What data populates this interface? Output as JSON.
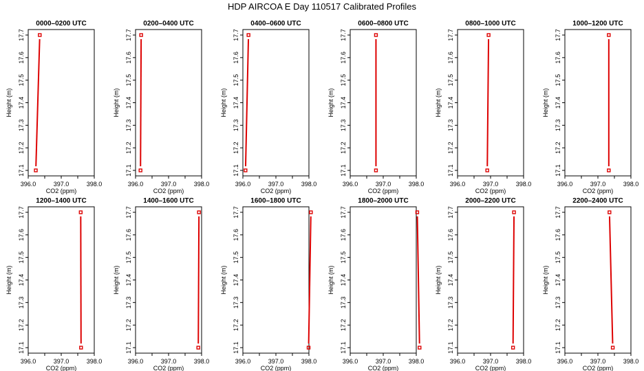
{
  "title": "HDP AIRCOA E  Day 110517  Calibrated Profiles",
  "chart_data": {
    "type": "line",
    "xlabel": "CO2 (ppm)",
    "ylabel": "Height (m)",
    "xlim": [
      396.0,
      398.0
    ],
    "ylim": [
      17.1,
      17.7
    ],
    "xticks": [
      "396.0",
      "397.0",
      "398.0"
    ],
    "yticks": [
      "17.1",
      "17.2",
      "17.3",
      "17.4",
      "17.5",
      "17.6",
      "17.7"
    ],
    "grid": false,
    "color": "#dd0000",
    "panels": [
      {
        "title": "0000–0200 UTC",
        "heights": [
          17.1,
          17.7
        ],
        "co2": [
          396.23,
          396.35
        ]
      },
      {
        "title": "0200–0400 UTC",
        "heights": [
          17.1,
          17.7
        ],
        "co2": [
          396.15,
          396.17
        ]
      },
      {
        "title": "0400–0600 UTC",
        "heights": [
          17.1,
          17.7
        ],
        "co2": [
          396.08,
          396.17
        ]
      },
      {
        "title": "0600–0800 UTC",
        "heights": [
          17.1,
          17.7
        ],
        "co2": [
          396.78,
          396.78
        ]
      },
      {
        "title": "0800–1000 UTC",
        "heights": [
          17.1,
          17.7
        ],
        "co2": [
          396.9,
          396.94
        ]
      },
      {
        "title": "1000–1200 UTC",
        "heights": [
          17.1,
          17.7
        ],
        "co2": [
          397.33,
          397.33
        ]
      },
      {
        "title": "1200–1400 UTC",
        "heights": [
          17.1,
          17.7
        ],
        "co2": [
          397.6,
          397.59
        ]
      },
      {
        "title": "1400–1600 UTC",
        "heights": [
          17.1,
          17.7
        ],
        "co2": [
          397.9,
          397.92
        ]
      },
      {
        "title": "1600–1800 UTC",
        "heights": [
          17.1,
          17.7
        ],
        "co2": [
          397.99,
          398.06
        ]
      },
      {
        "title": "1800–2000 UTC",
        "heights": [
          17.1,
          17.7
        ],
        "co2": [
          398.1,
          398.03
        ]
      },
      {
        "title": "2000–2200 UTC",
        "heights": [
          17.1,
          17.7
        ],
        "co2": [
          397.68,
          397.71
        ]
      },
      {
        "title": "2200–2400 UTC",
        "heights": [
          17.1,
          17.7
        ],
        "co2": [
          397.45,
          397.35
        ]
      }
    ]
  }
}
